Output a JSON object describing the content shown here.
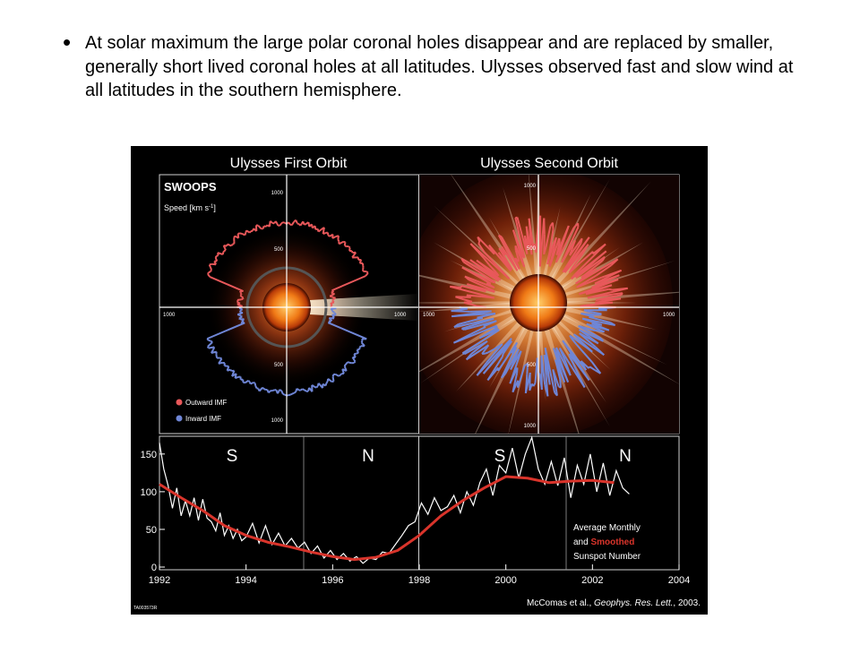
{
  "slide": {
    "bullet_symbol": "•",
    "bullet_text": "At solar maximum the large polar coronal holes disappear and are replaced by smaller, generally short lived coronal holes at all latitudes. Ulysses observed fast and slow wind at all latitudes in the southern hemisphere."
  },
  "figure": {
    "panel_titles": [
      "Ulysses First Orbit",
      "Ulysses Second Orbit"
    ],
    "instrument": "SWOOPS",
    "speed_label": "Speed [km s",
    "speed_label_sup": "-1",
    "speed_label_close": "]",
    "polar_ticks": [
      "1000",
      "500",
      "500",
      "1000"
    ],
    "polar_h_ticks": [
      "1000",
      "1000"
    ],
    "legend": [
      {
        "label": "Outward IMF",
        "color": "#e8585a"
      },
      {
        "label": "Inward IMF",
        "color": "#6f86d6"
      }
    ],
    "hemisphere_labels": [
      "S",
      "N",
      "S",
      "N"
    ],
    "sunspot_legend": {
      "line1": "Average Monthly",
      "line2_prefix": "and ",
      "line2_highlight": "Smoothed",
      "line3": "Sunspot Number"
    },
    "citation": {
      "prefix": "McComas et al., ",
      "journal": "Geophys. Res. Lett.",
      "suffix": ", 2003."
    },
    "image_id": "TA003573R",
    "colors": {
      "outward": "#e8585a",
      "inward": "#6f86d6",
      "smoothed": "#d9342b",
      "monthly": "#ffffff",
      "background": "#000000"
    }
  },
  "chart_data": {
    "type": "line",
    "title": "",
    "xlabel": "",
    "ylabel": "",
    "xlim": [
      1992,
      2004
    ],
    "ylim": [
      0,
      170
    ],
    "x_ticks": [
      1992,
      1994,
      1996,
      1998,
      2000,
      2002,
      2004
    ],
    "y_ticks": [
      0,
      50,
      100,
      150
    ],
    "series": [
      {
        "name": "Average Monthly",
        "color": "#ffffff",
        "x": [
          1992.0,
          1992.1,
          1992.2,
          1992.3,
          1992.4,
          1992.5,
          1992.6,
          1992.7,
          1992.8,
          1992.9,
          1993.0,
          1993.1,
          1993.2,
          1993.3,
          1993.4,
          1993.5,
          1993.6,
          1993.7,
          1993.8,
          1993.9,
          1994.0,
          1994.15,
          1994.3,
          1994.45,
          1994.6,
          1994.75,
          1994.9,
          1995.05,
          1995.2,
          1995.35,
          1995.5,
          1995.65,
          1995.8,
          1995.95,
          1996.1,
          1996.25,
          1996.4,
          1996.55,
          1996.7,
          1996.85,
          1997.0,
          1997.15,
          1997.3,
          1997.45,
          1997.6,
          1997.75,
          1997.9,
          1998.05,
          1998.2,
          1998.35,
          1998.5,
          1998.65,
          1998.8,
          1998.95,
          1999.1,
          1999.25,
          1999.4,
          1999.55,
          1999.7,
          1999.85,
          2000.0,
          2000.15,
          2000.3,
          2000.45,
          2000.6,
          2000.75,
          2000.9,
          2001.05,
          2001.2,
          2001.35,
          2001.5,
          2001.65,
          2001.8,
          2001.95,
          2002.1,
          2002.25,
          2002.4,
          2002.55,
          2002.7,
          2002.85
        ],
        "y": [
          165,
          130,
          108,
          78,
          105,
          68,
          88,
          68,
          92,
          62,
          90,
          65,
          60,
          48,
          72,
          42,
          55,
          38,
          50,
          35,
          40,
          58,
          32,
          55,
          30,
          45,
          28,
          38,
          25,
          33,
          18,
          28,
          12,
          22,
          10,
          18,
          8,
          14,
          5,
          12,
          10,
          20,
          18,
          30,
          42,
          55,
          60,
          85,
          70,
          92,
          75,
          80,
          95,
          72,
          100,
          82,
          112,
          130,
          95,
          135,
          125,
          158,
          118,
          150,
          172,
          130,
          110,
          140,
          108,
          145,
          92,
          135,
          110,
          150,
          100,
          138,
          95,
          128,
          105,
          97
        ],
        "note": "approximate"
      },
      {
        "name": "Smoothed",
        "color": "#d9342b",
        "x": [
          1992.0,
          1992.5,
          1993.0,
          1993.5,
          1994.0,
          1994.5,
          1995.0,
          1995.5,
          1996.0,
          1996.5,
          1997.0,
          1997.5,
          1998.0,
          1998.5,
          1999.0,
          1999.5,
          2000.0,
          2000.5,
          2001.0,
          2001.5,
          2002.0,
          2002.5
        ],
        "y": [
          110,
          92,
          75,
          55,
          42,
          33,
          27,
          20,
          14,
          10,
          13,
          22,
          42,
          68,
          88,
          105,
          120,
          118,
          112,
          114,
          115,
          112
        ]
      }
    ]
  }
}
